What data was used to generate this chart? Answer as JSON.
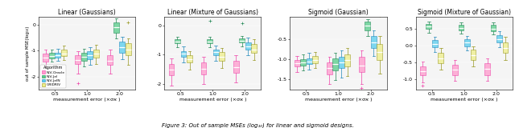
{
  "titles": [
    "Linear (Gaussians)",
    "Linear (Mixture of Gaussians)",
    "Sigmoid (Gaussian)",
    "Sigmoid (Mixture of Gaussian)"
  ],
  "xlabel": "measurement error (×σϰ )",
  "ylabel": "out of sample MSE(log₁₀)",
  "xtick_labels": [
    "0.5",
    "1.0",
    "2.0"
  ],
  "figcaption": "Figure 3: Out of sample MSEs (log₁₀) for linear and sigmoid designs.",
  "legend_labels": [
    "NIV-Oracle",
    "NIV-Jel",
    "NIV-JelN",
    "GRIDRIV"
  ],
  "color_map": [
    "#FF99CC",
    "#55CC88",
    "#55CCEE",
    "#EEEE88"
  ],
  "edge_colors": [
    "#EE44AA",
    "#228855",
    "#2288BB",
    "#999922"
  ],
  "median_colors": [
    "#EE44AA",
    "#228855",
    "#2288BB",
    "#999922"
  ],
  "panels": [
    {
      "title": "Linear (Gaussians)",
      "ylim": [
        -2.5,
        0.3
      ],
      "yticks": [
        -2,
        -1,
        0
      ],
      "groups": [
        [
          {
            "q1": -1.42,
            "med": -1.28,
            "q3": -1.12,
            "whislo": -1.6,
            "whishi": -0.98
          },
          {
            "q1": -1.3,
            "med": -1.2,
            "q3": -1.1,
            "whislo": -1.42,
            "whishi": -0.95
          },
          {
            "q1": -1.28,
            "med": -1.18,
            "q3": -1.08,
            "whislo": -1.4,
            "whishi": -0.92
          },
          {
            "q1": -1.22,
            "med": -1.12,
            "q3": -0.98,
            "whislo": -1.35,
            "whishi": -0.82
          }
        ],
        [
          {
            "q1": -1.52,
            "med": -1.35,
            "q3": -1.18,
            "whislo": -1.9,
            "whishi": -1.02,
            "flier_lo": -2.25
          },
          {
            "q1": -1.38,
            "med": -1.25,
            "q3": -1.1,
            "whislo": -1.62,
            "whishi": -0.92
          },
          {
            "q1": -1.32,
            "med": -1.18,
            "q3": -1.02,
            "whislo": -1.55,
            "whishi": -0.88
          },
          {
            "q1": -1.28,
            "med": -1.12,
            "q3": -0.95,
            "whislo": -1.52,
            "whishi": -0.78
          }
        ],
        [
          {
            "q1": -1.55,
            "med": -1.38,
            "q3": -1.18,
            "whislo": -1.9,
            "whishi": -0.95
          },
          {
            "q1": -0.32,
            "med": -0.12,
            "q3": 0.08,
            "whislo": -0.52,
            "whishi": 0.22
          },
          {
            "q1": -1.08,
            "med": -0.88,
            "q3": -0.65,
            "whislo": -1.32,
            "whishi": -0.48
          },
          {
            "q1": -1.18,
            "med": -0.95,
            "q3": -0.72,
            "whislo": -1.55,
            "whishi": -0.55,
            "flier_hi": 0.08
          }
        ]
      ]
    },
    {
      "title": "Linear (Mixture of Gaussians)",
      "ylim": [
        -2.2,
        0.3
      ],
      "yticks": [
        -2,
        -1,
        0
      ],
      "groups": [
        [
          {
            "q1": -1.72,
            "med": -1.52,
            "q3": -1.32,
            "whislo": -2.05,
            "whishi": -1.12
          },
          {
            "q1": -0.62,
            "med": -0.55,
            "q3": -0.48,
            "whislo": -0.75,
            "whishi": -0.38
          },
          {
            "q1": -1.08,
            "med": -0.98,
            "q3": -0.88,
            "whislo": -1.28,
            "whishi": -0.72
          },
          {
            "q1": -1.28,
            "med": -1.15,
            "q3": -1.02,
            "whislo": -1.52,
            "whishi": -0.88
          }
        ],
        [
          {
            "q1": -1.68,
            "med": -1.48,
            "q3": -1.28,
            "whislo": -2.0,
            "whishi": -1.08
          },
          {
            "q1": -0.62,
            "med": -0.55,
            "q3": -0.48,
            "whislo": -0.75,
            "whishi": -0.38,
            "flier_hi": 0.15
          },
          {
            "q1": -1.02,
            "med": -0.92,
            "q3": -0.82,
            "whislo": -1.22,
            "whishi": -0.68
          },
          {
            "q1": -1.22,
            "med": -1.08,
            "q3": -0.92,
            "whislo": -1.45,
            "whishi": -0.78
          }
        ],
        [
          {
            "q1": -1.62,
            "med": -1.42,
            "q3": -1.22,
            "whislo": -1.95,
            "whishi": -1.02
          },
          {
            "q1": -0.58,
            "med": -0.52,
            "q3": -0.45,
            "whislo": -0.72,
            "whishi": -0.35,
            "flier_hi": 0.08
          },
          {
            "q1": -0.82,
            "med": -0.72,
            "q3": -0.58,
            "whislo": -1.02,
            "whishi": -0.42
          },
          {
            "q1": -0.95,
            "med": -0.82,
            "q3": -0.65,
            "whislo": -1.18,
            "whishi": -0.48
          }
        ]
      ]
    },
    {
      "title": "Sigmoid (Gaussian)",
      "ylim": [
        -1.75,
        0.05
      ],
      "yticks": [
        -1.5,
        -1.0,
        -0.5
      ],
      "groups": [
        [
          {
            "q1": -1.18,
            "med": -1.1,
            "q3": -1.02,
            "whislo": -1.32,
            "whishi": -0.92
          },
          {
            "q1": -1.15,
            "med": -1.08,
            "q3": -1.0,
            "whislo": -1.28,
            "whishi": -0.88
          },
          {
            "q1": -1.12,
            "med": -1.05,
            "q3": -0.98,
            "whislo": -1.25,
            "whishi": -0.85
          },
          {
            "q1": -1.1,
            "med": -1.02,
            "q3": -0.92,
            "whislo": -1.22,
            "whishi": -0.82
          }
        ],
        [
          {
            "q1": -1.38,
            "med": -1.22,
            "q3": -1.08,
            "whislo": -1.62,
            "whishi": -0.95
          },
          {
            "q1": -1.28,
            "med": -1.12,
            "q3": -0.98,
            "whislo": -1.52,
            "whishi": -0.85
          },
          {
            "q1": -1.22,
            "med": -1.08,
            "q3": -0.95,
            "whislo": -1.45,
            "whishi": -0.78
          },
          {
            "q1": -1.18,
            "med": -1.02,
            "q3": -0.88,
            "whislo": -1.42,
            "whishi": -0.72
          }
        ],
        [
          {
            "q1": -1.32,
            "med": -1.15,
            "q3": -0.95,
            "whislo": -1.62,
            "whishi": -0.78,
            "flier_lo": -1.72
          },
          {
            "q1": -0.28,
            "med": -0.18,
            "q3": -0.08,
            "whislo": -0.42,
            "whishi": -0.02
          },
          {
            "q1": -0.72,
            "med": -0.58,
            "q3": -0.42,
            "whislo": -0.92,
            "whishi": -0.28
          },
          {
            "q1": -1.02,
            "med": -0.82,
            "q3": -0.62,
            "whislo": -1.35,
            "whishi": -0.42,
            "flier_hi": 0.08
          }
        ]
      ]
    },
    {
      "title": "Sigmoid (Mixture of Gaussian)",
      "ylim": [
        -1.3,
        0.85
      ],
      "yticks": [
        -1.0,
        -0.5,
        0.0,
        0.5
      ],
      "groups": [
        [
          {
            "q1": -0.88,
            "med": -0.75,
            "q3": -0.62,
            "whislo": -1.08,
            "whishi": -0.48,
            "flier_lo": -1.18
          },
          {
            "q1": 0.48,
            "med": 0.56,
            "q3": 0.64,
            "whislo": 0.38,
            "whishi": 0.7
          },
          {
            "q1": -0.05,
            "med": 0.05,
            "q3": 0.15,
            "whislo": -0.2,
            "whishi": 0.25
          },
          {
            "q1": -0.52,
            "med": -0.38,
            "q3": -0.22,
            "whislo": -0.72,
            "whishi": -0.08
          }
        ],
        [
          {
            "q1": -0.88,
            "med": -0.72,
            "q3": -0.58,
            "whislo": -1.05,
            "whishi": -0.42
          },
          {
            "q1": 0.45,
            "med": 0.52,
            "q3": 0.6,
            "whislo": 0.35,
            "whishi": 0.68
          },
          {
            "q1": -0.02,
            "med": 0.08,
            "q3": 0.18,
            "whislo": -0.15,
            "whishi": 0.28
          },
          {
            "q1": -0.42,
            "med": -0.28,
            "q3": -0.12,
            "whislo": -0.62,
            "whishi": -0.02
          }
        ],
        [
          {
            "q1": -0.88,
            "med": -0.68,
            "q3": -0.52,
            "whislo": -1.05,
            "whishi": -0.38
          },
          {
            "q1": 0.42,
            "med": 0.5,
            "q3": 0.6,
            "whislo": 0.32,
            "whishi": 0.68
          },
          {
            "q1": 0.08,
            "med": 0.18,
            "q3": 0.3,
            "whislo": -0.05,
            "whishi": 0.42
          },
          {
            "q1": -0.22,
            "med": -0.08,
            "q3": 0.1,
            "whislo": -0.42,
            "whishi": 0.25
          }
        ]
      ]
    }
  ]
}
